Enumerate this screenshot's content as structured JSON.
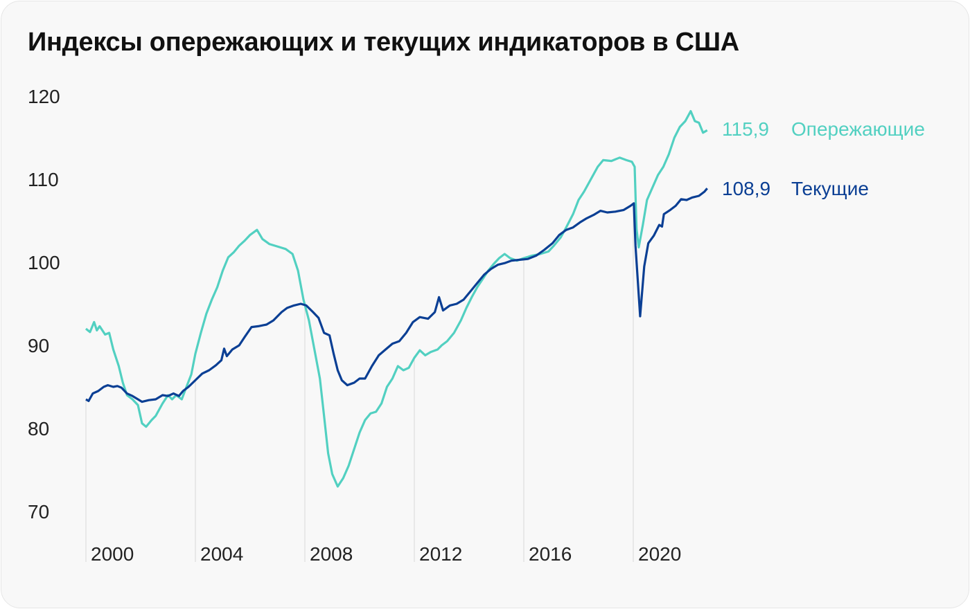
{
  "chart_data": {
    "type": "line",
    "title": "Индексы опережающих и текущих индикаторов в США",
    "xlabel": "",
    "ylabel": "",
    "xlim": [
      2000,
      2022.7
    ],
    "ylim": [
      70,
      120
    ],
    "yticks": [
      70,
      80,
      90,
      100,
      110,
      120
    ],
    "xticks": [
      2000,
      2004,
      2008,
      2012,
      2016,
      2020
    ],
    "grid": "vertical at x ticks",
    "legend": "right end labels",
    "series": [
      {
        "name": "Опережающие",
        "last_label": "115,9",
        "color": "#52d0c1",
        "points": [
          [
            2000,
            92
          ],
          [
            2000.15,
            91.6
          ],
          [
            2000.3,
            92.8
          ],
          [
            2000.4,
            91.8
          ],
          [
            2000.5,
            92.3
          ],
          [
            2000.7,
            91.3
          ],
          [
            2000.85,
            91.5
          ],
          [
            2001,
            89.5
          ],
          [
            2001.2,
            87.5
          ],
          [
            2001.35,
            85.5
          ],
          [
            2001.5,
            84
          ],
          [
            2001.7,
            83.5
          ],
          [
            2001.9,
            82.8
          ],
          [
            2002.05,
            80.6
          ],
          [
            2002.2,
            80.2
          ],
          [
            2002.4,
            81
          ],
          [
            2002.55,
            81.5
          ],
          [
            2002.8,
            83
          ],
          [
            2003,
            84
          ],
          [
            2003.15,
            83.5
          ],
          [
            2003.3,
            84
          ],
          [
            2003.5,
            83.5
          ],
          [
            2003.65,
            84.8
          ],
          [
            2003.85,
            86.5
          ],
          [
            2004,
            89
          ],
          [
            2004.2,
            91.5
          ],
          [
            2004.4,
            93.8
          ],
          [
            2004.6,
            95.5
          ],
          [
            2004.8,
            97
          ],
          [
            2005,
            99
          ],
          [
            2005.2,
            100.6
          ],
          [
            2005.4,
            101.2
          ],
          [
            2005.6,
            102
          ],
          [
            2005.8,
            102.6
          ],
          [
            2006.0,
            103.3
          ],
          [
            2006.25,
            103.9
          ],
          [
            2006.45,
            102.8
          ],
          [
            2006.7,
            102.2
          ],
          [
            2006.9,
            102
          ],
          [
            2007.1,
            101.8
          ],
          [
            2007.3,
            101.6
          ],
          [
            2007.55,
            101
          ],
          [
            2007.75,
            99
          ],
          [
            2007.95,
            95.5
          ],
          [
            2008.15,
            93
          ],
          [
            2008.35,
            89.5
          ],
          [
            2008.55,
            86
          ],
          [
            2008.7,
            81.5
          ],
          [
            2008.85,
            77
          ],
          [
            2009.0,
            74.5
          ],
          [
            2009.2,
            73
          ],
          [
            2009.4,
            74
          ],
          [
            2009.6,
            75.5
          ],
          [
            2009.8,
            77.5
          ],
          [
            2010,
            79.5
          ],
          [
            2010.2,
            81
          ],
          [
            2010.4,
            81.8
          ],
          [
            2010.6,
            82
          ],
          [
            2010.8,
            83
          ],
          [
            2011,
            85
          ],
          [
            2011.2,
            86
          ],
          [
            2011.4,
            87.5
          ],
          [
            2011.6,
            87
          ],
          [
            2011.8,
            87.3
          ],
          [
            2012,
            88.5
          ],
          [
            2012.2,
            89.4
          ],
          [
            2012.4,
            88.8
          ],
          [
            2012.6,
            89.2
          ],
          [
            2012.85,
            89.5
          ],
          [
            2013,
            90
          ],
          [
            2013.2,
            90.5
          ],
          [
            2013.45,
            91.5
          ],
          [
            2013.7,
            93
          ],
          [
            2013.9,
            94.5
          ],
          [
            2014.1,
            95.8
          ],
          [
            2014.3,
            97
          ],
          [
            2014.5,
            98
          ],
          [
            2014.7,
            99
          ],
          [
            2014.9,
            99.8
          ],
          [
            2015.1,
            100.5
          ],
          [
            2015.3,
            101
          ],
          [
            2015.5,
            100.5
          ],
          [
            2015.75,
            100.2
          ],
          [
            2016,
            100.5
          ],
          [
            2016.3,
            100.8
          ],
          [
            2016.6,
            101
          ],
          [
            2016.9,
            101.3
          ],
          [
            2017.1,
            102
          ],
          [
            2017.35,
            103
          ],
          [
            2017.55,
            104.2
          ],
          [
            2017.8,
            105.8
          ],
          [
            2018,
            107.5
          ],
          [
            2018.2,
            108.5
          ],
          [
            2018.45,
            110
          ],
          [
            2018.7,
            111.5
          ],
          [
            2018.9,
            112.3
          ],
          [
            2019.2,
            112.2
          ],
          [
            2019.5,
            112.6
          ],
          [
            2019.75,
            112.3
          ],
          [
            2019.95,
            112.1
          ],
          [
            2020.05,
            111.5
          ],
          [
            2020.12,
            104
          ],
          [
            2020.2,
            101.8
          ],
          [
            2020.35,
            104.5
          ],
          [
            2020.5,
            107.5
          ],
          [
            2020.7,
            109
          ],
          [
            2020.9,
            110.5
          ],
          [
            2021.1,
            111.5
          ],
          [
            2021.3,
            113
          ],
          [
            2021.5,
            115
          ],
          [
            2021.7,
            116.3
          ],
          [
            2021.9,
            117
          ],
          [
            2022.1,
            118.2
          ],
          [
            2022.25,
            117
          ],
          [
            2022.4,
            116.8
          ],
          [
            2022.55,
            115.6
          ],
          [
            2022.7,
            115.9
          ]
        ]
      },
      {
        "name": "Текущие",
        "last_label": "108,9",
        "color": "#0b3f94",
        "points": [
          [
            2000,
            83.5
          ],
          [
            2000.1,
            83.3
          ],
          [
            2000.25,
            84.2
          ],
          [
            2000.45,
            84.5
          ],
          [
            2000.65,
            85
          ],
          [
            2000.8,
            85.2
          ],
          [
            2001,
            85
          ],
          [
            2001.15,
            85.1
          ],
          [
            2001.3,
            84.9
          ],
          [
            2001.5,
            84.2
          ],
          [
            2001.7,
            83.9
          ],
          [
            2001.9,
            83.5
          ],
          [
            2002.05,
            83.2
          ],
          [
            2002.3,
            83.4
          ],
          [
            2002.55,
            83.5
          ],
          [
            2002.8,
            84
          ],
          [
            2003,
            83.9
          ],
          [
            2003.2,
            84.2
          ],
          [
            2003.4,
            83.9
          ],
          [
            2003.55,
            84.5
          ],
          [
            2003.75,
            85
          ],
          [
            2004,
            85.8
          ],
          [
            2004.25,
            86.6
          ],
          [
            2004.5,
            87
          ],
          [
            2004.75,
            87.6
          ],
          [
            2004.95,
            88.2
          ],
          [
            2005.05,
            89.6
          ],
          [
            2005.15,
            88.7
          ],
          [
            2005.35,
            89.5
          ],
          [
            2005.6,
            90
          ],
          [
            2005.8,
            91
          ],
          [
            2006.05,
            92.2
          ],
          [
            2006.3,
            92.3
          ],
          [
            2006.6,
            92.5
          ],
          [
            2006.85,
            93
          ],
          [
            2007.0,
            93.5
          ],
          [
            2007.15,
            94
          ],
          [
            2007.35,
            94.5
          ],
          [
            2007.6,
            94.8
          ],
          [
            2007.85,
            95
          ],
          [
            2008.05,
            94.8
          ],
          [
            2008.3,
            94
          ],
          [
            2008.5,
            93.3
          ],
          [
            2008.7,
            91.5
          ],
          [
            2008.9,
            91.2
          ],
          [
            2009.05,
            89
          ],
          [
            2009.2,
            87
          ],
          [
            2009.35,
            85.8
          ],
          [
            2009.55,
            85.2
          ],
          [
            2009.8,
            85.5
          ],
          [
            2010,
            86
          ],
          [
            2010.2,
            86
          ],
          [
            2010.45,
            87.5
          ],
          [
            2010.7,
            88.8
          ],
          [
            2010.95,
            89.5
          ],
          [
            2011.2,
            90.2
          ],
          [
            2011.45,
            90.5
          ],
          [
            2011.7,
            91.5
          ],
          [
            2011.95,
            92.8
          ],
          [
            2012.2,
            93.4
          ],
          [
            2012.5,
            93.2
          ],
          [
            2012.75,
            94
          ],
          [
            2012.9,
            95.8
          ],
          [
            2013.05,
            94.2
          ],
          [
            2013.3,
            94.8
          ],
          [
            2013.55,
            95
          ],
          [
            2013.8,
            95.5
          ],
          [
            2014.05,
            96.5
          ],
          [
            2014.3,
            97.5
          ],
          [
            2014.55,
            98.5
          ],
          [
            2014.8,
            99.2
          ],
          [
            2015.05,
            99.7
          ],
          [
            2015.3,
            99.9
          ],
          [
            2015.55,
            100.2
          ],
          [
            2015.85,
            100.3
          ],
          [
            2016.15,
            100.4
          ],
          [
            2016.45,
            100.8
          ],
          [
            2016.75,
            101.5
          ],
          [
            2017.05,
            102.3
          ],
          [
            2017.3,
            103.3
          ],
          [
            2017.55,
            103.9
          ],
          [
            2017.8,
            104.2
          ],
          [
            2018.05,
            104.8
          ],
          [
            2018.3,
            105.3
          ],
          [
            2018.55,
            105.7
          ],
          [
            2018.8,
            106.2
          ],
          [
            2019.05,
            106
          ],
          [
            2019.35,
            106.1
          ],
          [
            2019.65,
            106.3
          ],
          [
            2019.9,
            106.8
          ],
          [
            2020.02,
            107.1
          ],
          [
            2020.08,
            102
          ],
          [
            2020.25,
            93.5
          ],
          [
            2020.4,
            99.5
          ],
          [
            2020.55,
            102.3
          ],
          [
            2020.75,
            103.2
          ],
          [
            2020.95,
            104.5
          ],
          [
            2021.05,
            104.3
          ],
          [
            2021.12,
            105.8
          ],
          [
            2021.35,
            106.3
          ],
          [
            2021.55,
            106.8
          ],
          [
            2021.75,
            107.6
          ],
          [
            2021.95,
            107.5
          ],
          [
            2022.15,
            107.8
          ],
          [
            2022.4,
            108
          ],
          [
            2022.6,
            108.5
          ],
          [
            2022.7,
            108.9
          ]
        ]
      }
    ]
  }
}
